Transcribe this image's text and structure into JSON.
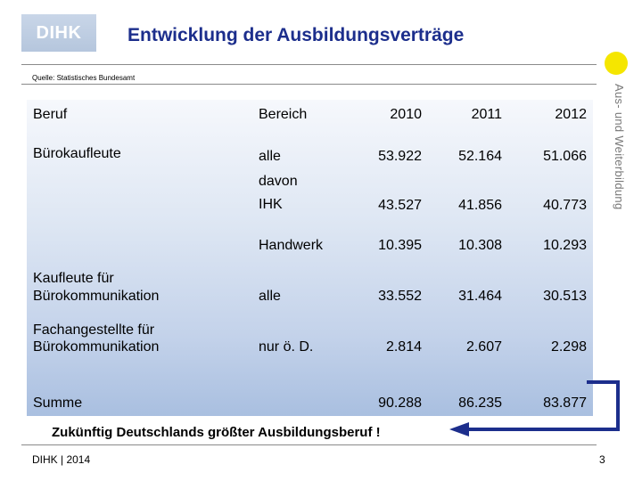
{
  "header": {
    "logo_text": "DIHK",
    "title": "Entwicklung der Ausbildungsverträge",
    "source": "Quelle: Statistisches Bundesamt",
    "side_label": "Aus- und Weiterbildung"
  },
  "table": {
    "headers": {
      "beruf": "Beruf",
      "bereich": "Bereich",
      "y2010": "2010",
      "y2011": "2011",
      "y2012": "2012"
    },
    "rows": {
      "buero_alle": {
        "beruf": "Bürokaufleute",
        "bereich": "alle",
        "y2010": "53.922",
        "y2011": "52.164",
        "y2012": "51.066"
      },
      "buero_ihk": {
        "bereich_line1": "davon",
        "bereich_line2": "IHK",
        "y2010": "43.527",
        "y2011": "41.856",
        "y2012": "40.773"
      },
      "buero_handwerk": {
        "bereich": "Handwerk",
        "y2010": "10.395",
        "y2011": "10.308",
        "y2012": "10.293"
      },
      "kaufleute_buerokomm": {
        "beruf_line1": "Kaufleute für",
        "beruf_line2": "Bürokommunikation",
        "bereich": "alle",
        "y2010": "33.552",
        "y2011": "31.464",
        "y2012": "30.513"
      },
      "fachangestellte": {
        "beruf_line1": "Fachangestellte für",
        "beruf_line2": "Bürokommunikation",
        "bereich": "nur ö. D.",
        "y2010": "2.814",
        "y2011": "2.607",
        "y2012": "2.298"
      },
      "summe": {
        "beruf": "Summe",
        "y2010": "90.288",
        "y2011": "86.235",
        "y2012": "83.877"
      }
    }
  },
  "note": "Zukünftig Deutschlands größter Ausbildungsberuf !",
  "footer": {
    "left": "DIHK | 2014",
    "page": "3"
  },
  "colors": {
    "title": "#1c2e8c",
    "arrow": "#1c2e8c",
    "accent_yellow": "#f5e600"
  }
}
